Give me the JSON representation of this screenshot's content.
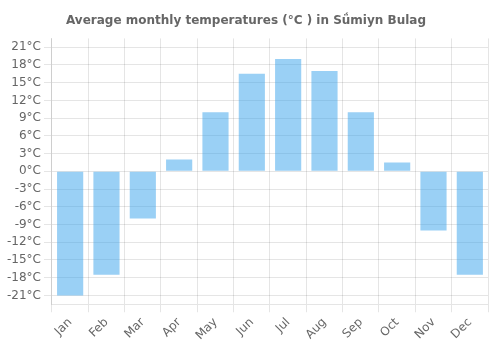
{
  "chart_data": {
    "type": "bar",
    "title": "Average monthly temperatures (°C ) in Sǘmiyn Bulag",
    "categories": [
      "Jan",
      "Feb",
      "Mar",
      "Apr",
      "May",
      "Jun",
      "Jul",
      "Aug",
      "Sep",
      "Oct",
      "Nov",
      "Dec"
    ],
    "values": [
      -21,
      -17.5,
      -8,
      2,
      10,
      16.5,
      19,
      17,
      10,
      1.5,
      -10,
      -17.5
    ],
    "ylim": [
      -22.5,
      22.5
    ],
    "yticks": [
      {
        "value": -21,
        "label": "-21°C"
      },
      {
        "value": -18,
        "label": "-18°C"
      },
      {
        "value": -15,
        "label": "-15°C"
      },
      {
        "value": -12,
        "label": "-12°C"
      },
      {
        "value": -9,
        "label": "-9°C"
      },
      {
        "value": -6,
        "label": "-6°C"
      },
      {
        "value": -3,
        "label": "-3°C"
      },
      {
        "value": 0,
        "label": "0°C"
      },
      {
        "value": 3,
        "label": "3°C"
      },
      {
        "value": 6,
        "label": "6°C"
      },
      {
        "value": 9,
        "label": "9°C"
      },
      {
        "value": 12,
        "label": "12°C"
      },
      {
        "value": 15,
        "label": "15°C"
      },
      {
        "value": 18,
        "label": "18°C"
      },
      {
        "value": 21,
        "label": "21°C"
      }
    ],
    "grid": true
  }
}
